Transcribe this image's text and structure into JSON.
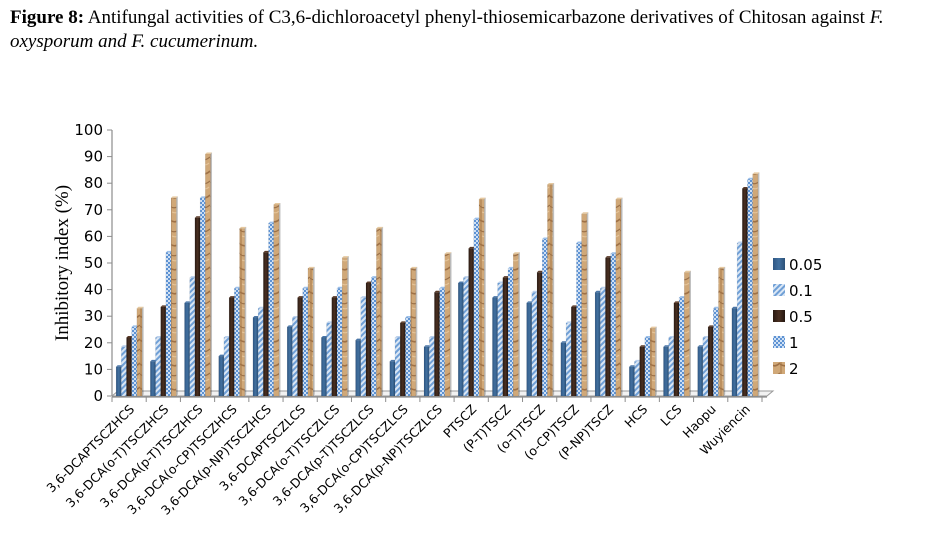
{
  "caption": {
    "label": "Figure 8:",
    "text_part1": " Antifungal activities of C3,6-dichloroacetyl phenyl-thiosemicarbazone derivatives of Chitosan against ",
    "italic_part": "F. oxysporum and F. cucumerinum."
  },
  "chart_data": {
    "type": "bar",
    "title": "",
    "xlabel": "",
    "ylabel": "Inhibitory index (%)",
    "ylim": [
      0,
      100
    ],
    "yticks": [
      0,
      10,
      20,
      30,
      40,
      50,
      60,
      70,
      80,
      90,
      100
    ],
    "grid": false,
    "legend_position": "right",
    "categories": [
      "3,6-DCAPTSCZHCS",
      "3,6-DCA(o-T)TSCZHCS",
      "3,6-DCA(p-T)TSCZHCS",
      "3,6-DCA(o-CP)TSCZHCS",
      "3,6-DCA(p-NP)TSCZHCS",
      "3,6-DCAPTSCZLCS",
      "3,6-DCA(o-T)TSCZLCS",
      "3,6-DCA(p-T)TSCZLCS",
      "3,6-DCA(o-CP)TSCZLCS",
      "3,6-DCA(p-NP)TSCZLCS",
      "PTSCZ",
      "(P-T)TSCZ",
      "(o-T)TSCZ",
      "(o-CP)TSCZ",
      "(P-NP)TSCZ",
      "HCS",
      "LCS",
      "Haopu",
      "Wuyiencin"
    ],
    "series": [
      {
        "name": "0.05",
        "color": "#3a6291",
        "values": [
          11,
          13,
          35,
          15,
          29.5,
          26,
          22,
          21,
          13,
          18.5,
          42.5,
          37,
          35,
          20,
          39,
          11,
          18.5,
          18.5,
          33
        ]
      },
      {
        "name": "0.1",
        "color": "#8eb4e3",
        "values": [
          18.5,
          22,
          44.5,
          22,
          33,
          29.5,
          27.5,
          37,
          22,
          22,
          44.5,
          42.5,
          39,
          27.5,
          40.5,
          13,
          22,
          22,
          57.5
        ]
      },
      {
        "name": "0.5",
        "color": "#3b2519",
        "values": [
          22,
          33.5,
          67,
          37,
          54,
          37,
          37,
          42.5,
          27.5,
          39,
          55.5,
          44.5,
          46.5,
          33.5,
          52,
          18.5,
          35,
          26,
          78
        ]
      },
      {
        "name": "1",
        "color": "#6a9bd8",
        "values": [
          26,
          54,
          74.5,
          40.5,
          65,
          40.5,
          40.5,
          44.5,
          29.5,
          40.5,
          66.5,
          48,
          59,
          57.5,
          53.5,
          22,
          37,
          33,
          81.5
        ]
      },
      {
        "name": "2",
        "color": "#c59a6a",
        "values": [
          33,
          74.5,
          91,
          63,
          72,
          48,
          52,
          63,
          48,
          53.5,
          74,
          53.5,
          79.5,
          68.5,
          74,
          25.5,
          46.5,
          48,
          83.5
        ]
      }
    ]
  }
}
